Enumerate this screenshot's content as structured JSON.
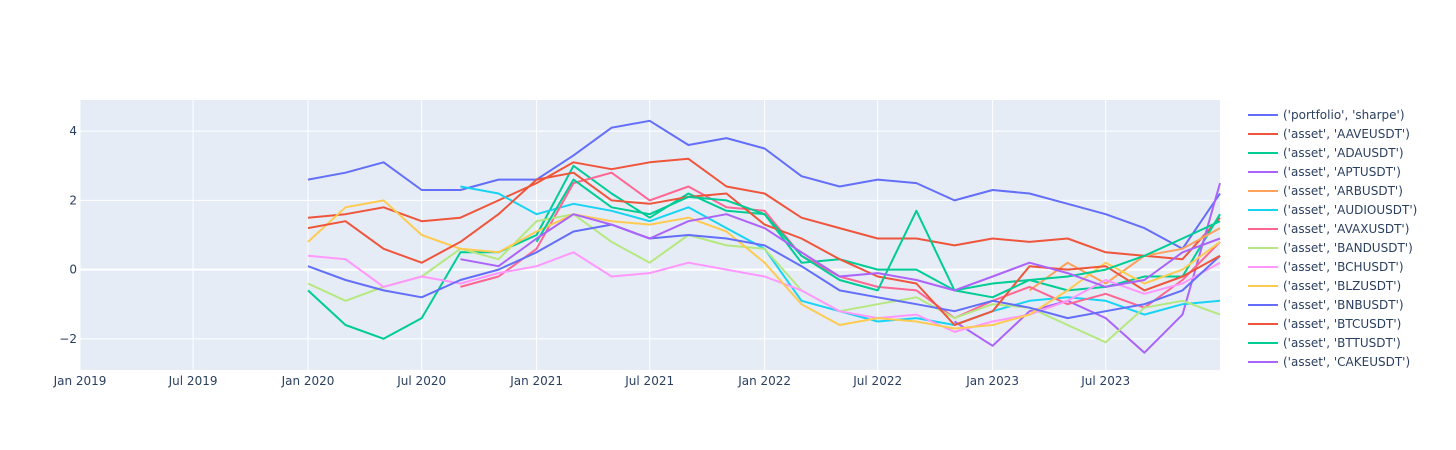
{
  "chart_data": {
    "type": "line",
    "title": "",
    "xlabel": "",
    "ylabel": "",
    "grid": true,
    "legend_position": "right",
    "xlim": [
      "2019-01-01",
      "2023-12-31"
    ],
    "ylim": [
      -2.9,
      4.9
    ],
    "x_tick_labels": [
      "Jan 2019",
      "Jul 2019",
      "Jan 2020",
      "Jul 2020",
      "Jan 2021",
      "Jul 2021",
      "Jan 2022",
      "Jul 2022",
      "Jan 2023",
      "Jul 2023"
    ],
    "x_tick_dates": [
      "2019-01-01",
      "2019-07-01",
      "2020-01-01",
      "2020-07-01",
      "2021-01-01",
      "2021-07-01",
      "2022-01-01",
      "2022-07-01",
      "2023-01-01",
      "2023-07-01"
    ],
    "y_tick_labels": [
      "−2",
      "0",
      "2",
      "4"
    ],
    "y_tick_values": [
      -2,
      0,
      2,
      4
    ],
    "x": [
      "2020-01-01",
      "2020-03-01",
      "2020-05-01",
      "2020-07-01",
      "2020-09-01",
      "2020-11-01",
      "2021-01-01",
      "2021-03-01",
      "2021-05-01",
      "2021-07-01",
      "2021-09-01",
      "2021-11-01",
      "2022-01-01",
      "2022-03-01",
      "2022-05-01",
      "2022-07-01",
      "2022-09-01",
      "2022-11-01",
      "2023-01-01",
      "2023-03-01",
      "2023-05-01",
      "2023-07-01",
      "2023-09-01",
      "2023-11-01",
      "2023-12-31"
    ],
    "series": [
      {
        "name": "('portfolio', 'sharpe')",
        "color": "#636efa",
        "values": [
          2.6,
          2.8,
          3.1,
          2.3,
          2.3,
          2.6,
          2.6,
          3.3,
          4.1,
          4.3,
          3.6,
          3.8,
          3.5,
          2.7,
          2.4,
          2.6,
          2.5,
          2.0,
          2.3,
          2.2,
          1.9,
          1.6,
          1.2,
          0.6,
          2.2
        ]
      },
      {
        "name": "('asset', 'AAVEUSDT')",
        "color": "#ef553b",
        "values": [
          1.5,
          1.6,
          1.8,
          1.4,
          1.5,
          2.0,
          2.5,
          3.1,
          2.9,
          3.1,
          3.2,
          2.4,
          2.2,
          1.5,
          1.2,
          0.9,
          0.9,
          0.7,
          0.9,
          0.8,
          0.9,
          0.5,
          0.4,
          0.3,
          1.5
        ]
      },
      {
        "name": "('asset', 'ADAUSDT')",
        "color": "#00cc96",
        "values": [
          -0.6,
          -1.6,
          -2.0,
          -1.4,
          0.5,
          0.5,
          1.0,
          3.0,
          2.2,
          1.5,
          2.2,
          1.7,
          1.6,
          0.2,
          0.3,
          0.0,
          0.0,
          -0.6,
          -0.4,
          -0.3,
          -0.6,
          -0.5,
          -0.2,
          -0.2,
          1.6
        ]
      },
      {
        "name": "('asset', 'APTUSDT')",
        "color": "#ab63fa",
        "values": [
          null,
          null,
          null,
          null,
          null,
          null,
          null,
          null,
          null,
          null,
          null,
          null,
          null,
          null,
          null,
          null,
          null,
          -1.5,
          -2.2,
          -1.2,
          -0.9,
          -1.4,
          -2.4,
          -1.3,
          2.5
        ]
      },
      {
        "name": "('asset', 'ARBUSDT')",
        "color": "#ffa15a",
        "values": [
          null,
          null,
          null,
          null,
          null,
          null,
          null,
          null,
          null,
          null,
          null,
          null,
          null,
          null,
          null,
          null,
          null,
          null,
          null,
          -0.6,
          0.2,
          -0.4,
          0.4,
          0.6,
          1.2
        ]
      },
      {
        "name": "('asset', 'AUDIOUSDT')",
        "color": "#19d3f3",
        "values": [
          null,
          null,
          null,
          null,
          2.4,
          2.2,
          1.6,
          1.9,
          1.7,
          1.4,
          1.8,
          1.2,
          0.6,
          -0.9,
          -1.2,
          -1.5,
          -1.4,
          -1.6,
          -1.2,
          -0.9,
          -0.8,
          -0.9,
          -1.3,
          -1.0,
          -0.9
        ]
      },
      {
        "name": "('asset', 'AVAXUSDT')",
        "color": "#ff6692",
        "values": [
          null,
          null,
          null,
          null,
          -0.5,
          -0.2,
          0.6,
          2.5,
          2.8,
          2.0,
          2.4,
          1.8,
          1.7,
          0.4,
          -0.2,
          -0.5,
          -0.6,
          -1.4,
          -0.9,
          -0.5,
          -1.0,
          -0.7,
          -1.1,
          -0.3,
          0.8
        ]
      },
      {
        "name": "('asset', 'BANDUSDT')",
        "color": "#b6e880",
        "values": [
          -0.4,
          -0.9,
          -0.5,
          -0.2,
          0.6,
          0.3,
          1.4,
          1.6,
          0.8,
          0.2,
          1.0,
          0.7,
          0.6,
          -0.6,
          -1.2,
          -1.0,
          -0.8,
          -1.4,
          -1.0,
          -1.1,
          -1.6,
          -2.1,
          -1.1,
          -0.9,
          -1.3
        ]
      },
      {
        "name": "('asset', 'BCHUSDT')",
        "color": "#ff97ff",
        "values": [
          0.4,
          0.3,
          -0.5,
          -0.2,
          -0.4,
          -0.1,
          0.1,
          0.5,
          -0.2,
          -0.1,
          0.2,
          0.0,
          -0.2,
          -0.6,
          -1.2,
          -1.4,
          -1.3,
          -1.8,
          -1.5,
          -1.3,
          -0.9,
          -0.3,
          -0.7,
          -0.4,
          0.2
        ]
      },
      {
        "name": "('asset', 'BLZUSDT')",
        "color": "#fecb52",
        "values": [
          0.8,
          1.8,
          2.0,
          1.0,
          0.6,
          0.5,
          1.1,
          1.6,
          1.4,
          1.3,
          1.5,
          1.1,
          0.2,
          -1.0,
          -1.6,
          -1.4,
          -1.5,
          -1.7,
          -1.6,
          -1.3,
          -0.6,
          0.2,
          -0.4,
          0.0,
          0.8
        ]
      },
      {
        "name": "('asset', 'BNBUSDT')",
        "color": "#636efa",
        "values": [
          0.1,
          -0.3,
          -0.6,
          -0.8,
          -0.3,
          0.0,
          0.5,
          1.1,
          1.3,
          0.9,
          1.0,
          0.9,
          0.7,
          0.1,
          -0.6,
          -0.8,
          -1.0,
          -1.2,
          -0.9,
          -1.1,
          -1.4,
          -1.2,
          -1.0,
          -0.6,
          0.4
        ]
      },
      {
        "name": "('asset', 'BTCUSDT')",
        "color": "#ef553b",
        "values": [
          1.2,
          1.4,
          0.6,
          0.2,
          0.8,
          1.6,
          2.6,
          2.8,
          2.0,
          1.9,
          2.1,
          2.2,
          1.3,
          0.9,
          0.3,
          -0.2,
          -0.4,
          -1.6,
          -1.2,
          0.1,
          0.0,
          0.1,
          -0.6,
          -0.2,
          0.4
        ]
      },
      {
        "name": "('asset', 'BTTUSDT')",
        "color": "#00cc96",
        "values": [
          null,
          null,
          null,
          null,
          null,
          null,
          0.8,
          2.6,
          1.8,
          1.6,
          2.1,
          2.0,
          1.6,
          0.4,
          -0.3,
          -0.6,
          1.7,
          -0.6,
          -0.8,
          -0.3,
          -0.2,
          0.0,
          0.4,
          0.9,
          1.4
        ]
      },
      {
        "name": "('asset', 'CAKEUSDT')",
        "color": "#ab63fa",
        "values": [
          null,
          null,
          null,
          null,
          0.3,
          0.1,
          0.9,
          1.6,
          1.3,
          0.9,
          1.4,
          1.6,
          1.2,
          0.5,
          -0.2,
          -0.1,
          -0.3,
          -0.6,
          -0.2,
          0.2,
          -0.1,
          -0.5,
          -0.3,
          0.5,
          0.9
        ]
      }
    ]
  }
}
